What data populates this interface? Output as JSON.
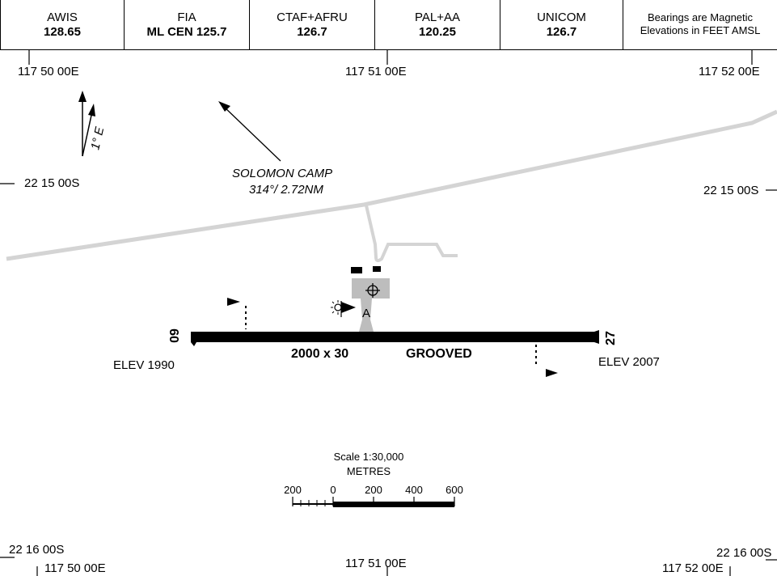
{
  "frequencies": [
    {
      "name": "AWIS",
      "value": "128.65"
    },
    {
      "name": "FIA",
      "value": "ML CEN 125.7"
    },
    {
      "name": "CTAF+AFRU",
      "value": "126.7"
    },
    {
      "name": "PAL+AA",
      "value": "120.25"
    },
    {
      "name": "UNICOM",
      "value": "126.7"
    }
  ],
  "notes": {
    "line1": "Bearings are Magnetic",
    "line2": "Elevations in FEET AMSL"
  },
  "grid": {
    "lon_top_left": "117 50 00E",
    "lon_top_mid": "117 51 00E",
    "lon_top_right": "117 52 00E",
    "lat_left_1": "22 15 00S",
    "lat_right_1": "22 15 00S",
    "lat_left_2": "22 16 00S",
    "lat_right_2": "22 16 00S",
    "lon_bottom_left": "117 50 00E",
    "lon_bottom_mid": "117 51 00E",
    "lon_bottom_right": "117 52 00E"
  },
  "magnetic_variation": "1° E",
  "reference": {
    "name": "SOLOMON CAMP",
    "bearing_distance": "314°/ 2.72NM"
  },
  "runway": {
    "dimensions": "2000 x 30",
    "surface": "GROOVED",
    "end_west": "09",
    "end_east": "27",
    "elev_west": "ELEV 1990",
    "elev_east": "ELEV 2007",
    "taxiway_label": "A"
  },
  "scale": {
    "title": "Scale 1:30,000",
    "units": "METRES",
    "ticks": [
      "200",
      "0",
      "200",
      "400",
      "600"
    ]
  },
  "colors": {
    "road": "#d4d4d4",
    "apron": "#bdbdbd",
    "runway": "#000000"
  }
}
